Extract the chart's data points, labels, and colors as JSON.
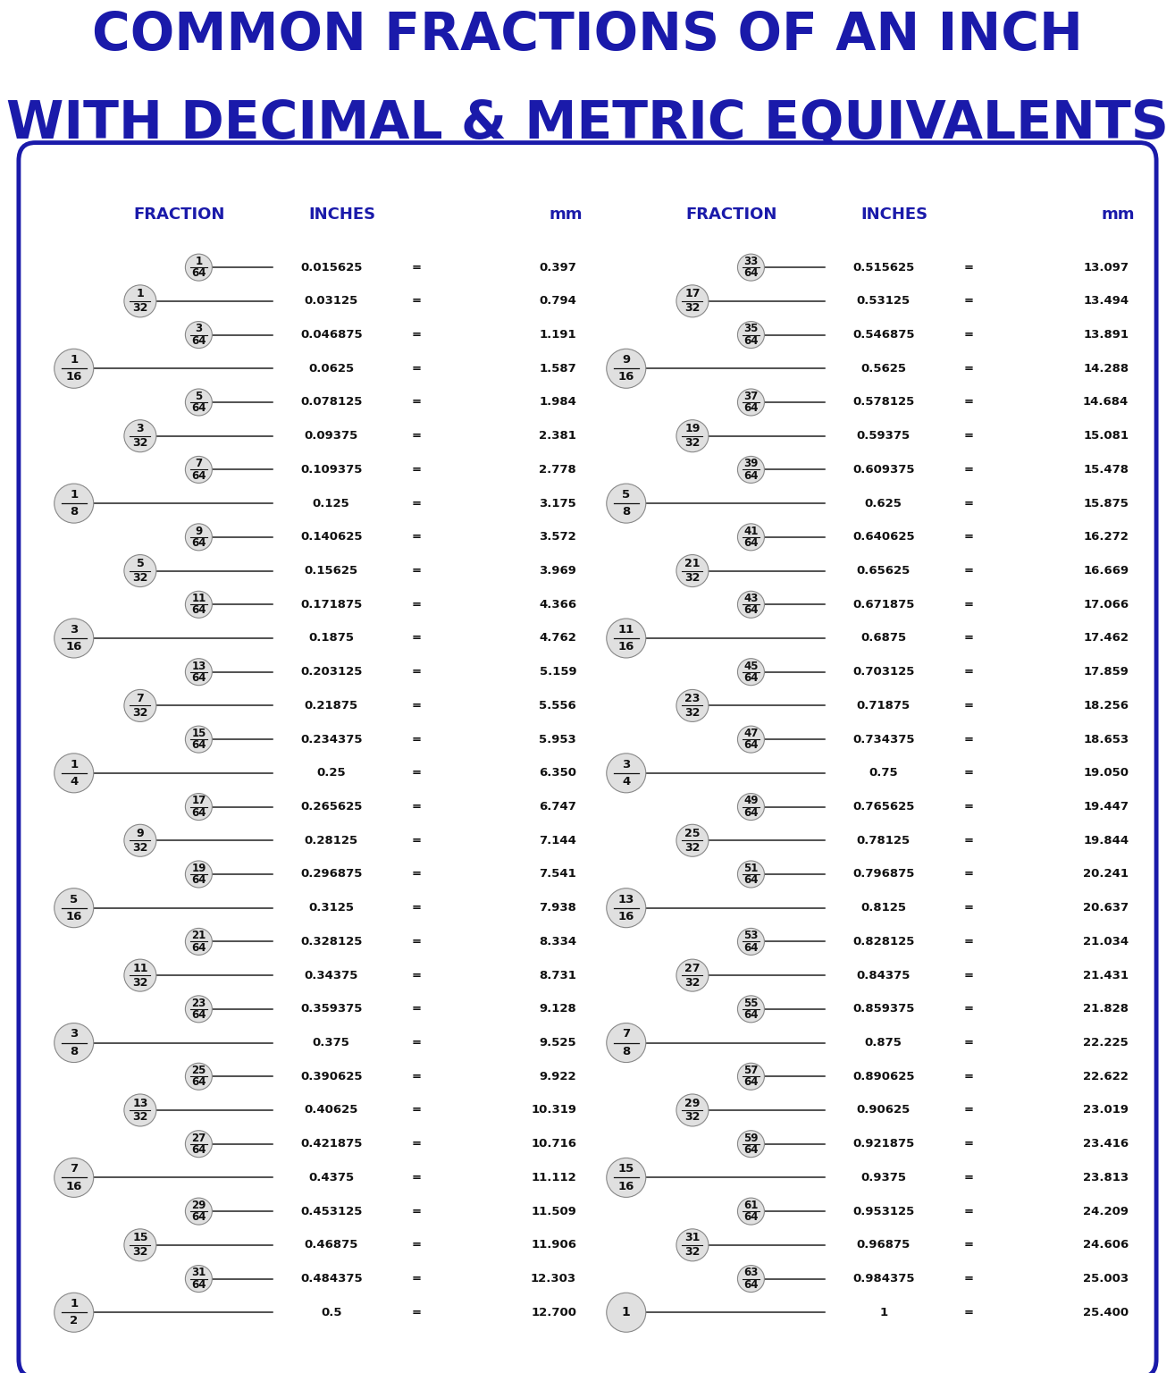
{
  "title_line1": "COMMON FRACTIONS OF AN INCH",
  "title_line2": "WITH DECIMAL & METRIC EQUIVALENTS",
  "title_color": "#1a1aaa",
  "bg_color": "#ffffff",
  "border_color": "#1a1aaa",
  "header_color": "#1a1aaa",
  "text_color": "#111111",
  "ellipse_face": "#e0e0e0",
  "ellipse_edge": "#888888",
  "line_color": "#222222",
  "left_rows": [
    {
      "level": 3,
      "frac": "1/64",
      "decimal": "0.015625",
      "mm": "0.397"
    },
    {
      "level": 2,
      "frac": "1/32",
      "decimal": "0.03125",
      "mm": "0.794"
    },
    {
      "level": 3,
      "frac": "3/64",
      "decimal": "0.046875",
      "mm": "1.191"
    },
    {
      "level": 1,
      "frac": "1/16",
      "decimal": "0.0625",
      "mm": "1.587"
    },
    {
      "level": 3,
      "frac": "5/64",
      "decimal": "0.078125",
      "mm": "1.984"
    },
    {
      "level": 2,
      "frac": "3/32",
      "decimal": "0.09375",
      "mm": "2.381"
    },
    {
      "level": 3,
      "frac": "7/64",
      "decimal": "0.109375",
      "mm": "2.778"
    },
    {
      "level": 1,
      "frac": "1/8",
      "decimal": "0.125",
      "mm": "3.175"
    },
    {
      "level": 3,
      "frac": "9/64",
      "decimal": "0.140625",
      "mm": "3.572"
    },
    {
      "level": 2,
      "frac": "5/32",
      "decimal": "0.15625",
      "mm": "3.969"
    },
    {
      "level": 3,
      "frac": "11/64",
      "decimal": "0.171875",
      "mm": "4.366"
    },
    {
      "level": 1,
      "frac": "3/16",
      "decimal": "0.1875",
      "mm": "4.762"
    },
    {
      "level": 3,
      "frac": "13/64",
      "decimal": "0.203125",
      "mm": "5.159"
    },
    {
      "level": 2,
      "frac": "7/32",
      "decimal": "0.21875",
      "mm": "5.556"
    },
    {
      "level": 3,
      "frac": "15/64",
      "decimal": "0.234375",
      "mm": "5.953"
    },
    {
      "level": 1,
      "frac": "1/4",
      "decimal": "0.25",
      "mm": "6.350"
    },
    {
      "level": 3,
      "frac": "17/64",
      "decimal": "0.265625",
      "mm": "6.747"
    },
    {
      "level": 2,
      "frac": "9/32",
      "decimal": "0.28125",
      "mm": "7.144"
    },
    {
      "level": 3,
      "frac": "19/64",
      "decimal": "0.296875",
      "mm": "7.541"
    },
    {
      "level": 1,
      "frac": "5/16",
      "decimal": "0.3125",
      "mm": "7.938"
    },
    {
      "level": 3,
      "frac": "21/64",
      "decimal": "0.328125",
      "mm": "8.334"
    },
    {
      "level": 2,
      "frac": "11/32",
      "decimal": "0.34375",
      "mm": "8.731"
    },
    {
      "level": 3,
      "frac": "23/64",
      "decimal": "0.359375",
      "mm": "9.128"
    },
    {
      "level": 1,
      "frac": "3/8",
      "decimal": "0.375",
      "mm": "9.525"
    },
    {
      "level": 3,
      "frac": "25/64",
      "decimal": "0.390625",
      "mm": "9.922"
    },
    {
      "level": 2,
      "frac": "13/32",
      "decimal": "0.40625",
      "mm": "10.319"
    },
    {
      "level": 3,
      "frac": "27/64",
      "decimal": "0.421875",
      "mm": "10.716"
    },
    {
      "level": 1,
      "frac": "7/16",
      "decimal": "0.4375",
      "mm": "11.112"
    },
    {
      "level": 3,
      "frac": "29/64",
      "decimal": "0.453125",
      "mm": "11.509"
    },
    {
      "level": 2,
      "frac": "15/32",
      "decimal": "0.46875",
      "mm": "11.906"
    },
    {
      "level": 3,
      "frac": "31/64",
      "decimal": "0.484375",
      "mm": "12.303"
    },
    {
      "level": 1,
      "frac": "1/2",
      "decimal": "0.5",
      "mm": "12.700"
    }
  ],
  "right_rows": [
    {
      "level": 3,
      "frac": "33/64",
      "decimal": "0.515625",
      "mm": "13.097"
    },
    {
      "level": 2,
      "frac": "17/32",
      "decimal": "0.53125",
      "mm": "13.494"
    },
    {
      "level": 3,
      "frac": "35/64",
      "decimal": "0.546875",
      "mm": "13.891"
    },
    {
      "level": 1,
      "frac": "9/16",
      "decimal": "0.5625",
      "mm": "14.288"
    },
    {
      "level": 3,
      "frac": "37/64",
      "decimal": "0.578125",
      "mm": "14.684"
    },
    {
      "level": 2,
      "frac": "19/32",
      "decimal": "0.59375",
      "mm": "15.081"
    },
    {
      "level": 3,
      "frac": "39/64",
      "decimal": "0.609375",
      "mm": "15.478"
    },
    {
      "level": 1,
      "frac": "5/8",
      "decimal": "0.625",
      "mm": "15.875"
    },
    {
      "level": 3,
      "frac": "41/64",
      "decimal": "0.640625",
      "mm": "16.272"
    },
    {
      "level": 2,
      "frac": "21/32",
      "decimal": "0.65625",
      "mm": "16.669"
    },
    {
      "level": 3,
      "frac": "43/64",
      "decimal": "0.671875",
      "mm": "17.066"
    },
    {
      "level": 1,
      "frac": "11/16",
      "decimal": "0.6875",
      "mm": "17.462"
    },
    {
      "level": 3,
      "frac": "45/64",
      "decimal": "0.703125",
      "mm": "17.859"
    },
    {
      "level": 2,
      "frac": "23/32",
      "decimal": "0.71875",
      "mm": "18.256"
    },
    {
      "level": 3,
      "frac": "47/64",
      "decimal": "0.734375",
      "mm": "18.653"
    },
    {
      "level": 1,
      "frac": "3/4",
      "decimal": "0.75",
      "mm": "19.050"
    },
    {
      "level": 3,
      "frac": "49/64",
      "decimal": "0.765625",
      "mm": "19.447"
    },
    {
      "level": 2,
      "frac": "25/32",
      "decimal": "0.78125",
      "mm": "19.844"
    },
    {
      "level": 3,
      "frac": "51/64",
      "decimal": "0.796875",
      "mm": "20.241"
    },
    {
      "level": 1,
      "frac": "13/16",
      "decimal": "0.8125",
      "mm": "20.637"
    },
    {
      "level": 3,
      "frac": "53/64",
      "decimal": "0.828125",
      "mm": "21.034"
    },
    {
      "level": 2,
      "frac": "27/32",
      "decimal": "0.84375",
      "mm": "21.431"
    },
    {
      "level": 3,
      "frac": "55/64",
      "decimal": "0.859375",
      "mm": "21.828"
    },
    {
      "level": 1,
      "frac": "7/8",
      "decimal": "0.875",
      "mm": "22.225"
    },
    {
      "level": 3,
      "frac": "57/64",
      "decimal": "0.890625",
      "mm": "22.622"
    },
    {
      "level": 2,
      "frac": "29/32",
      "decimal": "0.90625",
      "mm": "23.019"
    },
    {
      "level": 3,
      "frac": "59/64",
      "decimal": "0.921875",
      "mm": "23.416"
    },
    {
      "level": 1,
      "frac": "15/16",
      "decimal": "0.9375",
      "mm": "23.813"
    },
    {
      "level": 3,
      "frac": "61/64",
      "decimal": "0.953125",
      "mm": "24.209"
    },
    {
      "level": 2,
      "frac": "31/32",
      "decimal": "0.96875",
      "mm": "24.606"
    },
    {
      "level": 3,
      "frac": "63/64",
      "decimal": "0.984375",
      "mm": "25.003"
    },
    {
      "level": 0,
      "frac": "1",
      "decimal": "1",
      "mm": "25.400"
    }
  ]
}
